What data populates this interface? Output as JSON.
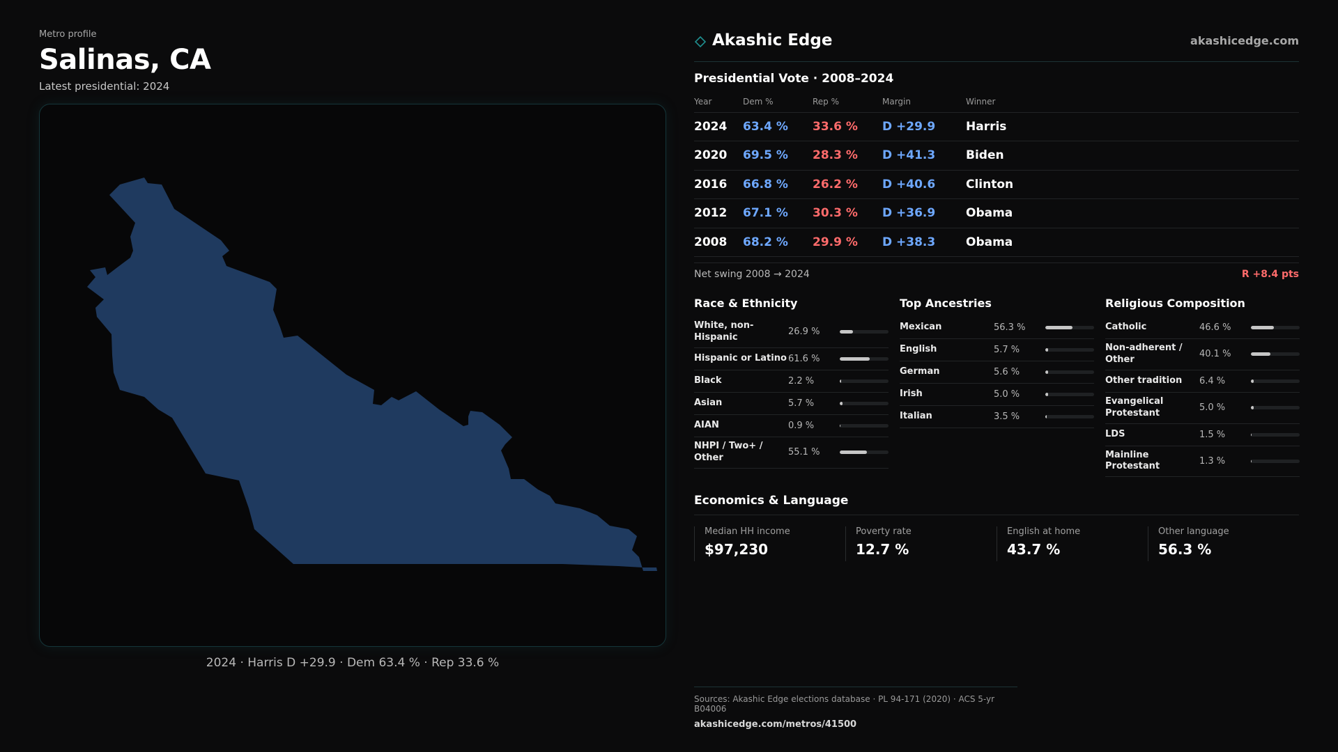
{
  "header": {
    "eyebrow": "Metro profile",
    "city": "Salinas, CA",
    "subtitle": "Latest presidential: 2024"
  },
  "map": {
    "fill_color": "#1f3a5f",
    "caption": "2024 · Harris D +29.9 · Dem 63.4 % · Rep 33.6 %"
  },
  "brand": {
    "icon": "diamond-icon",
    "name": "Akashic Edge",
    "url": "akashicedge.com"
  },
  "vote": {
    "title": "Presidential Vote · 2008–2024",
    "headers": {
      "year": "Year",
      "dem": "Dem %",
      "rep": "Rep %",
      "margin": "Margin",
      "winner": "Winner"
    },
    "rows": [
      {
        "year": "2024",
        "dem": "63.4 %",
        "rep": "33.6 %",
        "margin": "D +29.9",
        "winner": "Harris"
      },
      {
        "year": "2020",
        "dem": "69.5 %",
        "rep": "28.3 %",
        "margin": "D +41.3",
        "winner": "Biden"
      },
      {
        "year": "2016",
        "dem": "66.8 %",
        "rep": "26.2 %",
        "margin": "D +40.6",
        "winner": "Clinton"
      },
      {
        "year": "2012",
        "dem": "67.1 %",
        "rep": "30.3 %",
        "margin": "D +36.9",
        "winner": "Obama"
      },
      {
        "year": "2008",
        "dem": "68.2 %",
        "rep": "29.9 %",
        "margin": "D +38.3",
        "winner": "Obama"
      }
    ],
    "swing_label": "Net swing 2008 → 2024",
    "swing_value": "R +8.4 pts"
  },
  "race": {
    "title": "Race & Ethnicity",
    "items": [
      {
        "label": "White, non-Hispanic",
        "value": "26.9 %",
        "pct": 26.9
      },
      {
        "label": "Hispanic or Latino",
        "value": "61.6 %",
        "pct": 61.6
      },
      {
        "label": "Black",
        "value": "2.2 %",
        "pct": 2.2
      },
      {
        "label": "Asian",
        "value": "5.7 %",
        "pct": 5.7
      },
      {
        "label": "AIAN",
        "value": "0.9 %",
        "pct": 0.9
      },
      {
        "label": "NHPI / Two+ / Other",
        "value": "55.1 %",
        "pct": 55.1
      }
    ]
  },
  "ancestry": {
    "title": "Top Ancestries",
    "items": [
      {
        "label": "Mexican",
        "value": "56.3 %",
        "pct": 56.3
      },
      {
        "label": "English",
        "value": "5.7 %",
        "pct": 5.7
      },
      {
        "label": "German",
        "value": "5.6 %",
        "pct": 5.6
      },
      {
        "label": "Irish",
        "value": "5.0 %",
        "pct": 5.0
      },
      {
        "label": "Italian",
        "value": "3.5 %",
        "pct": 3.5
      }
    ]
  },
  "religion": {
    "title": "Religious Composition",
    "items": [
      {
        "label": "Catholic",
        "value": "46.6 %",
        "pct": 46.6
      },
      {
        "label": "Non-adherent / Other",
        "value": "40.1 %",
        "pct": 40.1
      },
      {
        "label": "Other tradition",
        "value": "6.4 %",
        "pct": 6.4
      },
      {
        "label": "Evangelical Protestant",
        "value": "5.0 %",
        "pct": 5.0
      },
      {
        "label": "LDS",
        "value": "1.5 %",
        "pct": 1.5
      },
      {
        "label": "Mainline Protestant",
        "value": "1.3 %",
        "pct": 1.3
      }
    ]
  },
  "economics": {
    "title": "Economics & Language",
    "cards": [
      {
        "label": "Median HH income",
        "value": "$97,230"
      },
      {
        "label": "Poverty rate",
        "value": "12.7 %"
      },
      {
        "label": "English at home",
        "value": "43.7 %"
      },
      {
        "label": "Other language",
        "value": "56.3 %"
      }
    ]
  },
  "sources": {
    "text": "Sources: Akashic Edge elections database · PL 94-171 (2020) · ACS 5-yr B04006",
    "url": "akashicedge.com/metros/41500"
  }
}
